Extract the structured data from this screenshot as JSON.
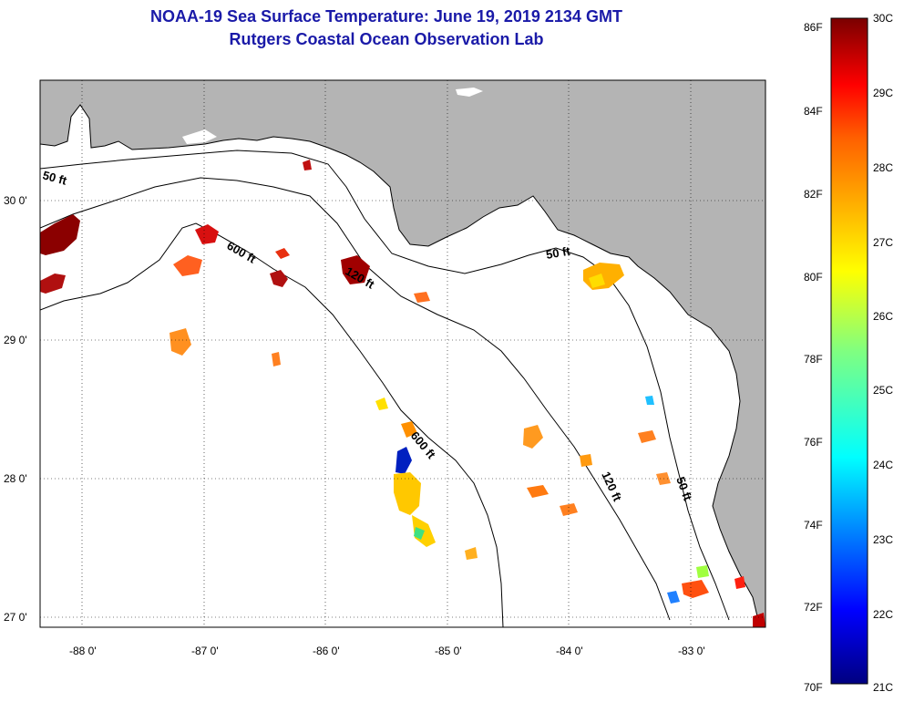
{
  "title": "NOAA-19 Sea Surface Temperature:  June 19, 2019 2134 GMT",
  "subtitle": "Rutgers Coastal Ocean Observation Lab",
  "map": {
    "lon_ticks": [
      "-88 0'",
      "-87 0'",
      "-86 0'",
      "-85 0'",
      "-84 0'",
      "-83 0'"
    ],
    "lat_ticks": [
      "30 0'",
      "29 0'",
      "28 0'",
      "27 0'"
    ],
    "depth_contours": [
      "50 ft",
      "600 ft",
      "120 ft",
      "50 ft",
      "600 ft",
      "120 ft",
      "50 ft"
    ],
    "colors": {
      "land": "#b4b4b4",
      "ocean": "#ffffff",
      "coast": "#000000"
    }
  },
  "colorbar": {
    "fahrenheit": [
      "86F",
      "84F",
      "82F",
      "80F",
      "78F",
      "76F",
      "74F",
      "72F",
      "70F"
    ],
    "celsius": [
      "30C",
      "29C",
      "28C",
      "27C",
      "26C",
      "25C",
      "24C",
      "23C",
      "22C",
      "21C"
    ],
    "range_c": [
      21,
      30
    ],
    "range_f": [
      70,
      86
    ]
  }
}
